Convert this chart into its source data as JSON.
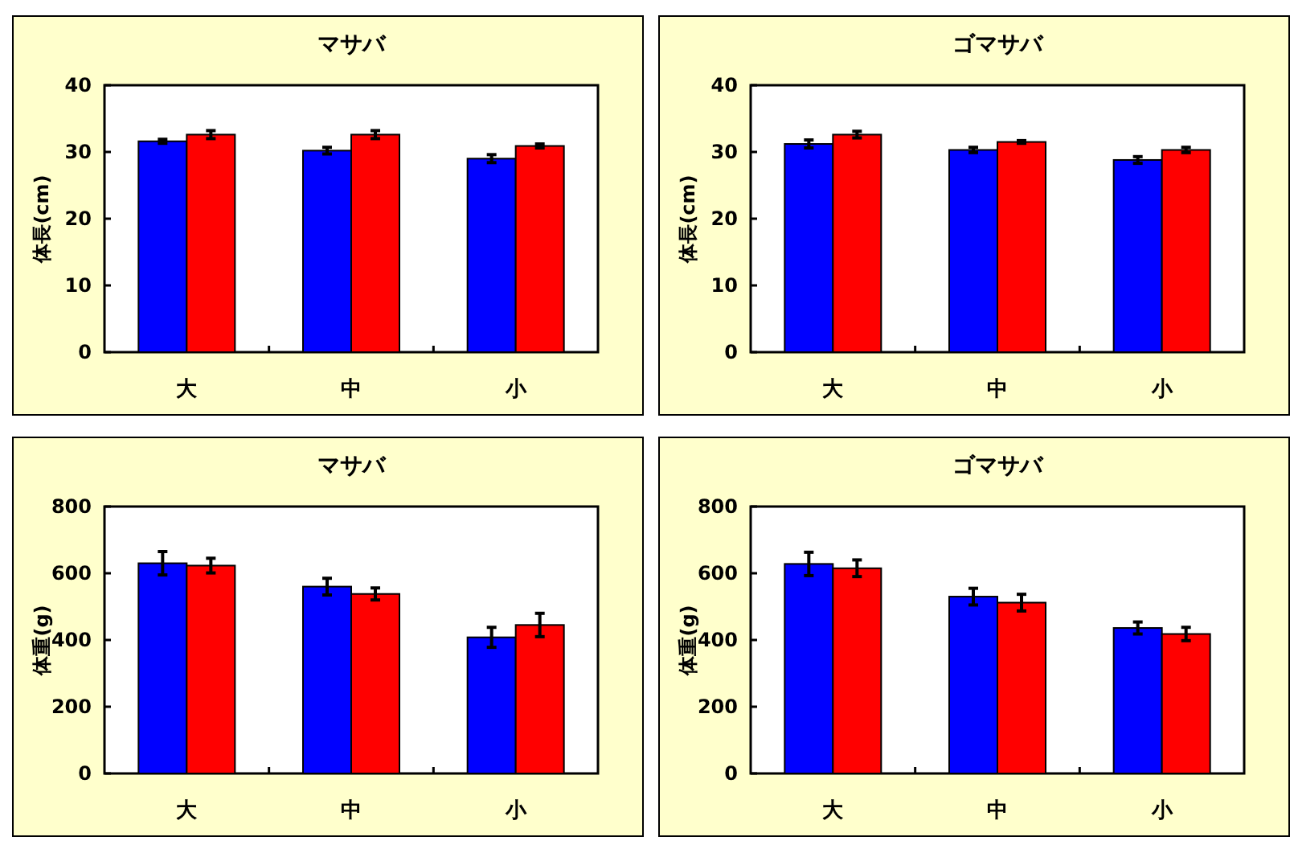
{
  "chart_data": [
    {
      "type": "bar",
      "title": "マサバ",
      "ylabel": "体長(cm)",
      "categories": [
        "大",
        "中",
        "小"
      ],
      "ylim": [
        0,
        40
      ],
      "yticks": [
        0,
        10,
        20,
        30,
        40
      ],
      "series": [
        {
          "color": "#0000ff",
          "values": [
            31.6,
            30.2,
            29.0
          ],
          "errors": [
            0.3,
            0.5,
            0.6
          ]
        },
        {
          "color": "#ff0000",
          "values": [
            32.6,
            32.6,
            30.9
          ],
          "errors": [
            0.6,
            0.6,
            0.3
          ]
        }
      ]
    },
    {
      "type": "bar",
      "title": "ゴマサバ",
      "ylabel": "体長(cm)",
      "categories": [
        "大",
        "中",
        "小"
      ],
      "ylim": [
        0,
        40
      ],
      "yticks": [
        0,
        10,
        20,
        30,
        40
      ],
      "series": [
        {
          "color": "#0000ff",
          "values": [
            31.2,
            30.3,
            28.8
          ],
          "errors": [
            0.6,
            0.4,
            0.5
          ]
        },
        {
          "color": "#ff0000",
          "values": [
            32.6,
            31.5,
            30.3
          ],
          "errors": [
            0.5,
            0.2,
            0.4
          ]
        }
      ]
    },
    {
      "type": "bar",
      "title": "マサバ",
      "ylabel": "体重(g)",
      "categories": [
        "大",
        "中",
        "小"
      ],
      "ylim": [
        0,
        800
      ],
      "yticks": [
        0,
        200,
        400,
        600,
        800
      ],
      "series": [
        {
          "color": "#0000ff",
          "values": [
            630,
            560,
            408
          ],
          "errors": [
            35,
            25,
            30
          ]
        },
        {
          "color": "#ff0000",
          "values": [
            623,
            538,
            445
          ],
          "errors": [
            22,
            18,
            35
          ]
        }
      ]
    },
    {
      "type": "bar",
      "title": "ゴマサバ",
      "ylabel": "体重(g)",
      "categories": [
        "大",
        "中",
        "小"
      ],
      "ylim": [
        0,
        800
      ],
      "yticks": [
        0,
        200,
        400,
        600,
        800
      ],
      "series": [
        {
          "color": "#0000ff",
          "values": [
            628,
            530,
            436
          ],
          "errors": [
            35,
            25,
            18
          ]
        },
        {
          "color": "#ff0000",
          "values": [
            615,
            512,
            418
          ],
          "errors": [
            25,
            25,
            20
          ]
        }
      ]
    }
  ]
}
